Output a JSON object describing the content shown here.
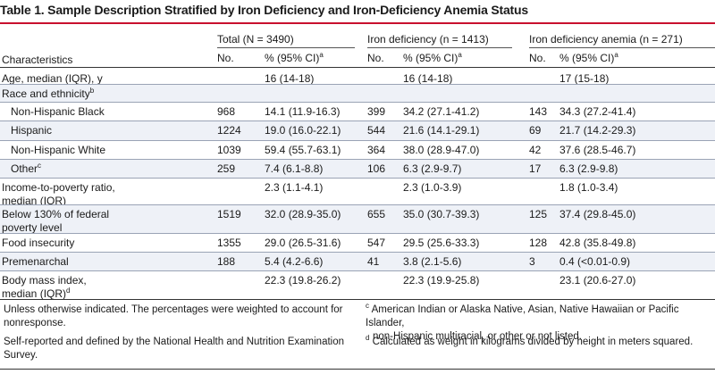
{
  "title": "Table 1. Sample Description Stratified by Iron Deficiency and Iron-Deficiency Anemia Status",
  "groups": {
    "total": "Total (N = 3490)",
    "iron_def": "Iron deficiency (n = 1413)",
    "ida": "Iron deficiency anemia (n = 271)"
  },
  "subheaders": {
    "characteristics": "Characteristics",
    "no": "No.",
    "pct": "% (95% CI)",
    "pct_sup": "a"
  },
  "rows": [
    {
      "label": "Age, median (IQR), y",
      "label_sup": "",
      "t_no": "",
      "t_pct": "16 (14-18)",
      "i_no": "",
      "i_pct": "16 (14-18)",
      "a_no": "",
      "a_pct": "17 (15-18)"
    },
    {
      "label": "Race and ethnicity",
      "label_sup": "b",
      "t_no": "",
      "t_pct": "",
      "i_no": "",
      "i_pct": "",
      "a_no": "",
      "a_pct": ""
    },
    {
      "label": "Non-Hispanic Black",
      "label_sup": "",
      "t_no": "968",
      "t_pct": "14.1 (11.9-16.3)",
      "i_no": "399",
      "i_pct": "34.2 (27.1-41.2)",
      "a_no": "143",
      "a_pct": "34.3 (27.2-41.4)"
    },
    {
      "label": "Hispanic",
      "label_sup": "",
      "t_no": "1224",
      "t_pct": "19.0 (16.0-22.1)",
      "i_no": "544",
      "i_pct": "21.6 (14.1-29.1)",
      "a_no": "69",
      "a_pct": "21.7 (14.2-29.3)"
    },
    {
      "label": "Non-Hispanic White",
      "label_sup": "",
      "t_no": "1039",
      "t_pct": "59.4 (55.7-63.1)",
      "i_no": "364",
      "i_pct": "38.0 (28.9-47.0)",
      "a_no": "42",
      "a_pct": "37.6 (28.5-46.7)"
    },
    {
      "label": "Other",
      "label_sup": "c",
      "t_no": "259",
      "t_pct": "7.4 (6.1-8.8)",
      "i_no": "106",
      "i_pct": "6.3 (2.9-9.7)",
      "a_no": "17",
      "a_pct": "6.3 (2.9-9.8)"
    },
    {
      "label": "Income-to-poverty ratio,",
      "label2": "median (IQR)",
      "label_sup": "",
      "t_no": "",
      "t_pct": "2.3 (1.1-4.1)",
      "i_no": "",
      "i_pct": "2.3 (1.0-3.9)",
      "a_no": "",
      "a_pct": "1.8 (1.0-3.4)"
    },
    {
      "label": "Below 130% of federal",
      "label2": "poverty level",
      "label_sup": "",
      "t_no": "1519",
      "t_pct": "32.0 (28.9-35.0)",
      "i_no": "655",
      "i_pct": "35.0 (30.7-39.3)",
      "a_no": "125",
      "a_pct": "37.4 (29.8-45.0)"
    },
    {
      "label": "Food insecurity",
      "label_sup": "",
      "t_no": "1355",
      "t_pct": "29.0 (26.5-31.6)",
      "i_no": "547",
      "i_pct": "29.5 (25.6-33.3)",
      "a_no": "128",
      "a_pct": "42.8 (35.8-49.8)"
    },
    {
      "label": "Premenarchal",
      "label_sup": "",
      "t_no": "188",
      "t_pct": "5.4 (4.2-6.6)",
      "i_no": "41",
      "i_pct": "3.8 (2.1-5.6)",
      "a_no": "3",
      "a_pct": "0.4 (<0.01-0.9)"
    },
    {
      "label": "Body mass index,",
      "label2": "median (IQR)",
      "label2_sup": "d",
      "label_sup": "",
      "t_no": "",
      "t_pct": "22.3 (19.8-26.2)",
      "i_no": "",
      "i_pct": "22.3 (19.9-25.8)",
      "a_no": "",
      "a_pct": "23.1 (20.6-27.0)"
    }
  ],
  "footnotes": {
    "a_line1": "Unless otherwise indicated. The percentages were weighted to account for",
    "a_line2": "nonresponse.",
    "b_line1": "Self-reported and defined by the National Health and Nutrition Examination",
    "b_line2": "Survey.",
    "c_sup": "c",
    "c_line1": "American Indian or Alaska Native, Asian, Native Hawaiian or Pacific Islander,",
    "c_line2": "non-Hispanic multiracial, or other or not listed.",
    "d_sup": "d",
    "d_line1": "Calculated as weight in kilograms divided by height in meters squared."
  }
}
